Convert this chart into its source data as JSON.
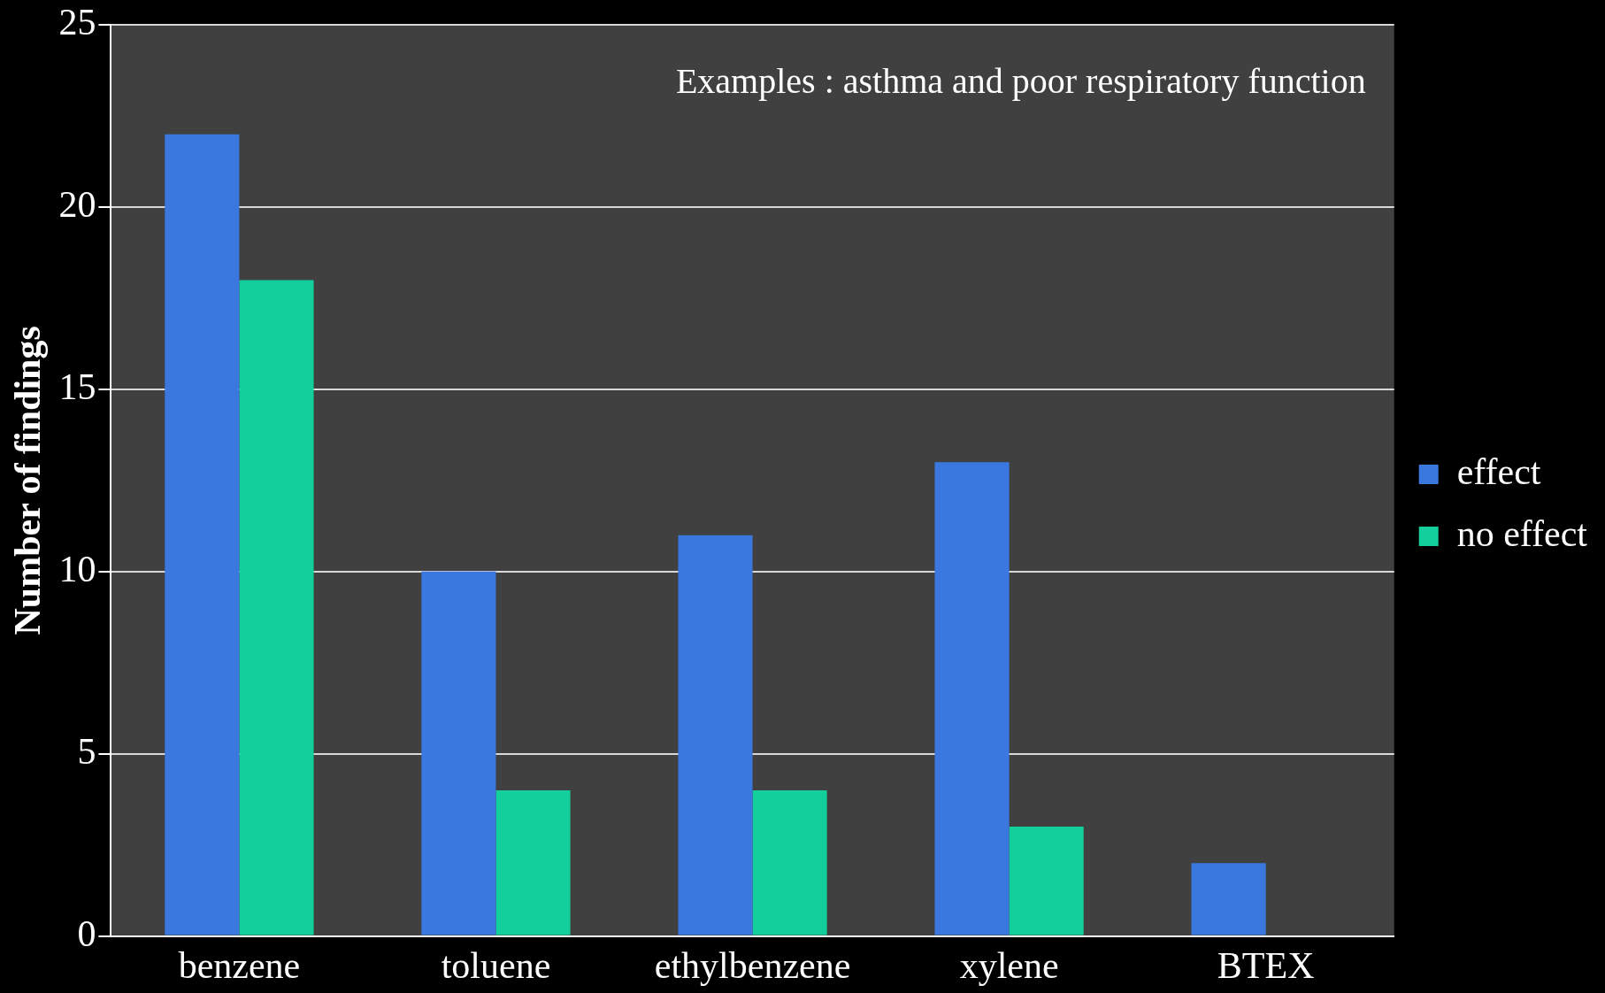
{
  "chart_data": {
    "type": "bar",
    "ylabel": "Number of findings",
    "annotations": [
      "Examples : asthma and poor respiratory function"
    ],
    "categories": [
      "benzene",
      "toluene",
      "ethylbenzene",
      "xylene",
      "BTEX"
    ],
    "series": [
      {
        "name": "effect",
        "color": "#3a78e0",
        "values": [
          22,
          10,
          11,
          13,
          2
        ]
      },
      {
        "name": "no effect",
        "color": "#13cf9b",
        "values": [
          18,
          4,
          4,
          3,
          null
        ]
      }
    ],
    "ylim": [
      0,
      25
    ],
    "yticks": [
      0,
      5,
      10,
      15,
      20,
      25
    ],
    "grid": "y",
    "legend": "right"
  }
}
